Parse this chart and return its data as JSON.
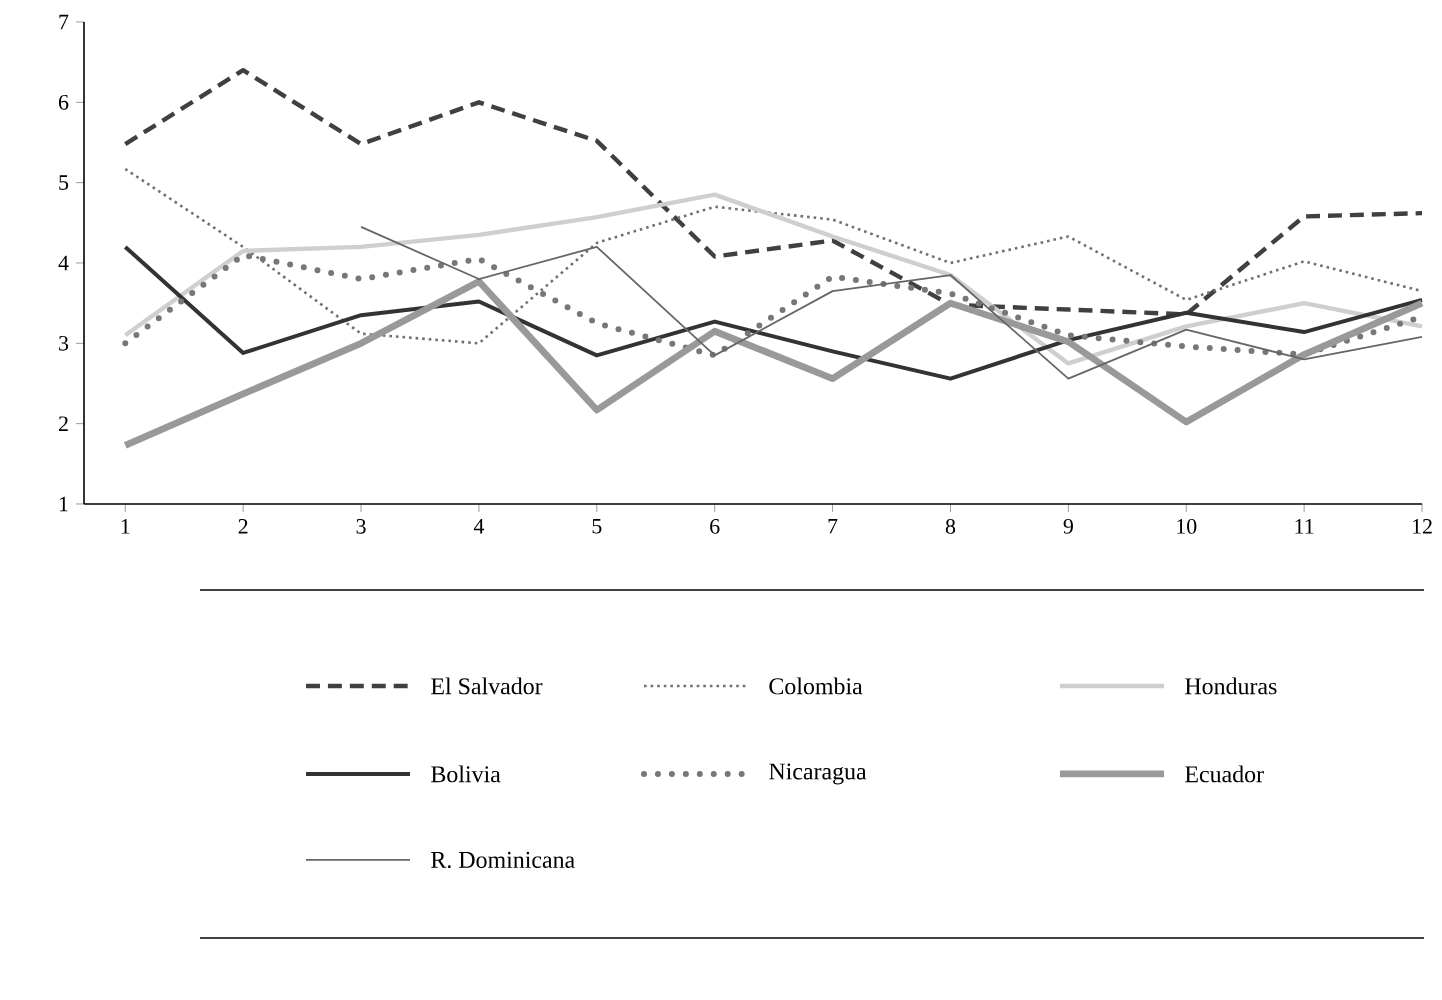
{
  "chart_data": {
    "type": "line",
    "x": [
      1,
      2,
      3,
      4,
      5,
      6,
      7,
      8,
      9,
      10,
      11,
      12
    ],
    "xlim": [
      0.65,
      12
    ],
    "ylim": [
      1,
      7
    ],
    "xticks": [
      1,
      2,
      3,
      4,
      5,
      6,
      7,
      8,
      9,
      10,
      11,
      12
    ],
    "yticks": [
      1,
      2,
      3,
      4,
      5,
      6,
      7
    ],
    "grid": false,
    "legend": "bottom",
    "series": [
      {
        "name": "El Salvador",
        "color": "#404040",
        "line_style": "dashed",
        "values": [
          5.48,
          6.4,
          5.48,
          6.0,
          5.52,
          4.08,
          4.28,
          3.48,
          3.42,
          3.36,
          4.58,
          4.62
        ]
      },
      {
        "name": "Colombia",
        "color": "#707070",
        "line_style": "dotted",
        "values": [
          5.17,
          4.2,
          3.12,
          3.0,
          4.25,
          4.7,
          4.54,
          4.0,
          4.33,
          3.54,
          4.02,
          3.65
        ]
      },
      {
        "name": "Honduras",
        "color": "#cfcfcf",
        "line_style": "solid",
        "values": [
          3.1,
          4.15,
          4.2,
          4.35,
          4.57,
          4.85,
          4.33,
          3.85,
          2.75,
          3.21,
          3.5,
          3.21
        ]
      },
      {
        "name": "Bolivia",
        "color": "#333333",
        "line_style": "solid",
        "values": [
          4.2,
          2.88,
          3.35,
          3.52,
          2.85,
          3.27,
          2.9,
          2.56,
          3.04,
          3.38,
          3.14,
          3.54
        ]
      },
      {
        "name": "Nicaragua",
        "color": "#777777",
        "line_style": "dotted",
        "values": [
          3.0,
          4.1,
          3.8,
          4.05,
          3.25,
          2.85,
          3.83,
          3.62,
          3.1,
          2.96,
          2.86,
          3.33
        ]
      },
      {
        "name": "Ecuador",
        "color": "#999999",
        "line_style": "solid",
        "values": [
          1.73,
          2.37,
          3.0,
          3.77,
          2.17,
          3.15,
          2.56,
          3.5,
          3.02,
          2.02,
          2.86,
          3.5
        ]
      },
      {
        "name": "R. Dominicana",
        "color": "#666666",
        "line_style": "solid",
        "values": [
          null,
          null,
          4.45,
          3.8,
          4.2,
          2.85,
          3.65,
          3.85,
          2.56,
          3.17,
          2.8,
          3.08
        ]
      }
    ]
  }
}
